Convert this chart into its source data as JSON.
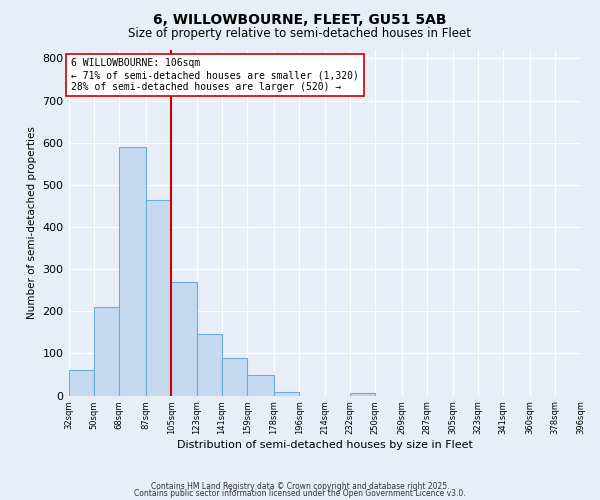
{
  "title": "6, WILLOWBOURNE, FLEET, GU51 5AB",
  "subtitle": "Size of property relative to semi-detached houses in Fleet",
  "xlabel": "Distribution of semi-detached houses by size in Fleet",
  "ylabel": "Number of semi-detached properties",
  "bar_edges": [
    32,
    50,
    68,
    87,
    105,
    123,
    141,
    159,
    178,
    196,
    214,
    232,
    250,
    269,
    287,
    305,
    323,
    341,
    360,
    378,
    396
  ],
  "bar_heights": [
    60,
    210,
    590,
    465,
    270,
    145,
    90,
    48,
    8,
    0,
    0,
    5,
    0,
    0,
    0,
    0,
    0,
    0,
    0,
    0
  ],
  "bar_color": "#c6daef",
  "bar_edge_color": "#6aaed6",
  "property_line_x": 105,
  "property_line_color": "#cc0000",
  "annotation_title": "6 WILLOWBOURNE: 106sqm",
  "annotation_line1": "← 71% of semi-detached houses are smaller (1,320)",
  "annotation_line2": "28% of semi-detached houses are larger (520) →",
  "annotation_box_color": "#ffffff",
  "annotation_box_edge_color": "#cc0000",
  "tick_labels": [
    "32sqm",
    "50sqm",
    "68sqm",
    "87sqm",
    "105sqm",
    "123sqm",
    "141sqm",
    "159sqm",
    "178sqm",
    "196sqm",
    "214sqm",
    "232sqm",
    "250sqm",
    "269sqm",
    "287sqm",
    "305sqm",
    "323sqm",
    "341sqm",
    "360sqm",
    "378sqm",
    "396sqm"
  ],
  "ylim": [
    0,
    820
  ],
  "yticks": [
    0,
    100,
    200,
    300,
    400,
    500,
    600,
    700,
    800
  ],
  "background_color": "#e8eef8",
  "grid_color": "#ffffff",
  "footer1": "Contains HM Land Registry data © Crown copyright and database right 2025.",
  "footer2": "Contains public sector information licensed under the Open Government Licence v3.0."
}
